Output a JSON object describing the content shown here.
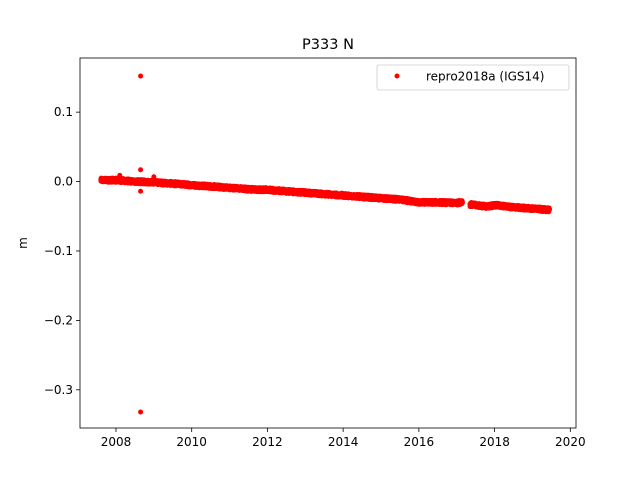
{
  "chart_data": {
    "type": "scatter",
    "title": "P333 N",
    "xlabel": "",
    "ylabel": "m",
    "xlim": [
      2007.05,
      2020.15
    ],
    "ylim": [
      -0.355,
      0.178
    ],
    "xticks": [
      2008,
      2010,
      2012,
      2014,
      2016,
      2018,
      2020
    ],
    "xtick_labels": [
      "2008",
      "2010",
      "2012",
      "2014",
      "2016",
      "2018",
      "2020"
    ],
    "yticks": [
      0.1,
      0.0,
      -0.1,
      -0.2,
      -0.3
    ],
    "ytick_labels": [
      "0.1",
      "0.0",
      "−0.1",
      "−0.2",
      "−0.3"
    ],
    "grid": false,
    "legend_position": "top-right",
    "series": [
      {
        "name": "repro2018a (IGS14)",
        "color": "#ff0000",
        "trend": [
          {
            "x": 2007.6,
            "y": 0.002
          },
          {
            "x": 2008.0,
            "y": 0.002
          },
          {
            "x": 2008.5,
            "y": 0.0
          },
          {
            "x": 2009.0,
            "y": -0.001
          },
          {
            "x": 2009.5,
            "y": -0.003
          },
          {
            "x": 2010.0,
            "y": -0.005
          },
          {
            "x": 2010.5,
            "y": -0.007
          },
          {
            "x": 2011.0,
            "y": -0.009
          },
          {
            "x": 2011.5,
            "y": -0.011
          },
          {
            "x": 2012.0,
            "y": -0.012
          },
          {
            "x": 2012.5,
            "y": -0.014
          },
          {
            "x": 2013.0,
            "y": -0.016
          },
          {
            "x": 2013.5,
            "y": -0.018
          },
          {
            "x": 2014.0,
            "y": -0.02
          },
          {
            "x": 2014.5,
            "y": -0.022
          },
          {
            "x": 2015.0,
            "y": -0.024
          },
          {
            "x": 2015.5,
            "y": -0.026
          },
          {
            "x": 2016.0,
            "y": -0.03
          },
          {
            "x": 2016.5,
            "y": -0.03
          },
          {
            "x": 2017.0,
            "y": -0.031
          },
          {
            "x": 2017.15,
            "y": -0.029
          }
        ],
        "trend2": [
          {
            "x": 2017.35,
            "y": -0.033
          },
          {
            "x": 2017.8,
            "y": -0.036
          },
          {
            "x": 2018.0,
            "y": -0.034
          },
          {
            "x": 2018.5,
            "y": -0.037
          },
          {
            "x": 2019.0,
            "y": -0.039
          },
          {
            "x": 2019.45,
            "y": -0.041
          }
        ],
        "outliers": [
          {
            "x": 2008.65,
            "y": 0.152
          },
          {
            "x": 2008.65,
            "y": 0.017
          },
          {
            "x": 2008.65,
            "y": -0.014
          },
          {
            "x": 2008.65,
            "y": -0.332
          },
          {
            "x": 2009.0,
            "y": 0.007
          },
          {
            "x": 2008.1,
            "y": 0.009
          }
        ]
      }
    ]
  }
}
